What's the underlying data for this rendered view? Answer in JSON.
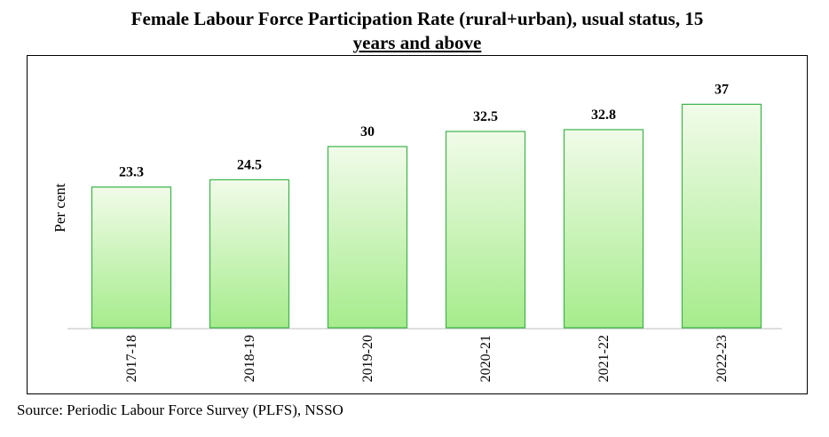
{
  "chart_title": {
    "line1": "Female Labour Force Participation Rate (rural+urban), usual status, 15",
    "line2": "years and above"
  },
  "source_note": "Source: Periodic Labour Force Survey (PLFS), NSSO",
  "colors": {
    "bar_fill_top": "#f1fbe9",
    "bar_fill_bottom": "#a6ec8c",
    "bar_stroke": "#3cb449",
    "axis": "#bfbfbf",
    "frame": "#000000"
  },
  "chart_data": {
    "type": "bar",
    "title": "Female Labour Force Participation Rate (rural+urban), usual status, 15 years and above",
    "ylabel": "Per cent",
    "xlabel": "",
    "categories": [
      "2017-18",
      "2018-19",
      "2019-20",
      "2020-21",
      "2021-22",
      "2022-23"
    ],
    "values": [
      23.3,
      24.5,
      30,
      32.5,
      32.8,
      37
    ],
    "value_labels": [
      "23.3",
      "24.5",
      "30",
      "32.5",
      "32.8",
      "37"
    ],
    "ylim": [
      0,
      40
    ],
    "grid": false,
    "legend": "none"
  }
}
